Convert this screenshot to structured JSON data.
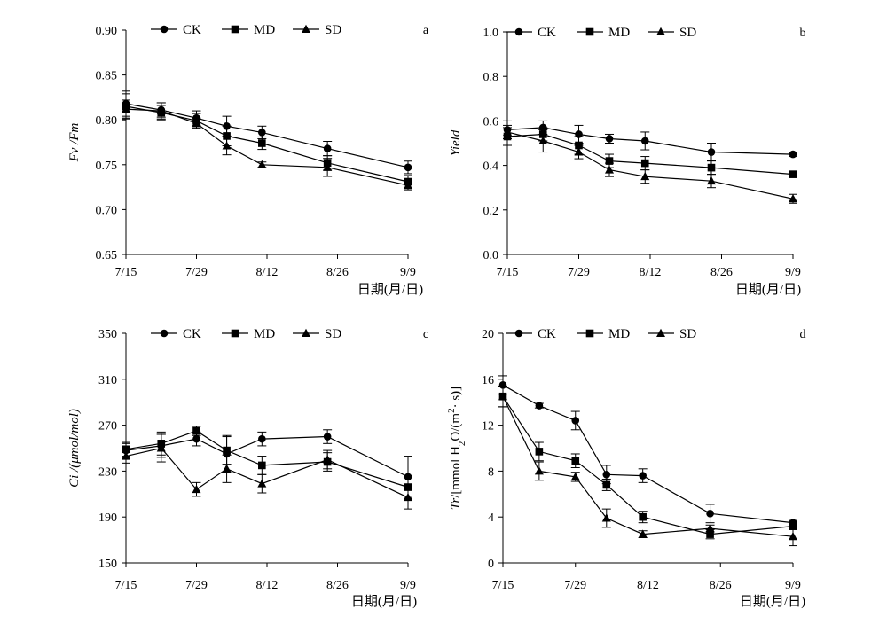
{
  "chart_data": [
    {
      "type": "line",
      "panel_label": "a",
      "ylabel": "Fv /Fm",
      "xlabel": "日期(月/日)",
      "ylim": [
        0.65,
        0.9
      ],
      "yticks": [
        "0.65",
        "0.70",
        "0.75",
        "0.80",
        "0.85",
        "0.90"
      ],
      "xticks": [
        "7/15",
        "7/29",
        "8/12",
        "8/26",
        "9/9"
      ],
      "x": [
        "7/15",
        "7/22",
        "7/29",
        "8/4",
        "8/11",
        "8/24",
        "9/9"
      ],
      "legend_position": "top-center",
      "series": [
        {
          "name": "CK",
          "marker": "circle",
          "values": [
            0.818,
            0.811,
            0.802,
            0.793,
            0.786,
            0.768,
            0.747
          ],
          "errors": [
            0.014,
            0.008,
            0.008,
            0.011,
            0.007,
            0.008,
            0.007
          ]
        },
        {
          "name": "MD",
          "marker": "square",
          "values": [
            0.815,
            0.808,
            0.799,
            0.782,
            0.774,
            0.752,
            0.731
          ],
          "errors": [
            0.014,
            0.008,
            0.008,
            0.011,
            0.007,
            0.008,
            0.007
          ]
        },
        {
          "name": "SD",
          "marker": "triangle",
          "values": [
            0.812,
            0.81,
            0.796,
            0.771,
            0.75,
            0.747,
            0.727
          ],
          "errors": [
            0.01,
            0.009,
            0.006,
            0.01,
            0.003,
            0.01,
            0.005
          ]
        }
      ]
    },
    {
      "type": "line",
      "panel_label": "b",
      "ylabel": "Yield",
      "xlabel": "日期(月/日)",
      "ylim": [
        0.0,
        1.0
      ],
      "yticks": [
        "0.0",
        "0.2",
        "0.4",
        "0.6",
        "0.8",
        "1.0"
      ],
      "xticks": [
        "7/15",
        "7/29",
        "8/12",
        "8/26",
        "9/9"
      ],
      "x": [
        "7/15",
        "7/22",
        "7/29",
        "8/4",
        "8/11",
        "8/24",
        "9/9"
      ],
      "legend_position": "top-center",
      "series": [
        {
          "name": "CK",
          "marker": "circle",
          "values": [
            0.56,
            0.57,
            0.54,
            0.52,
            0.51,
            0.46,
            0.45
          ],
          "errors": [
            0.04,
            0.03,
            0.04,
            0.02,
            0.04,
            0.04,
            0.01
          ]
        },
        {
          "name": "MD",
          "marker": "square",
          "values": [
            0.53,
            0.54,
            0.49,
            0.42,
            0.41,
            0.39,
            0.36
          ],
          "errors": [
            0.04,
            0.03,
            0.04,
            0.03,
            0.03,
            0.03,
            0.01
          ]
        },
        {
          "name": "SD",
          "marker": "triangle",
          "values": [
            0.55,
            0.51,
            0.46,
            0.38,
            0.35,
            0.33,
            0.25
          ],
          "errors": [
            0.03,
            0.05,
            0.03,
            0.03,
            0.03,
            0.03,
            0.02
          ]
        }
      ]
    },
    {
      "type": "line",
      "panel_label": "c",
      "ylabel": "Ci /(μmol/mol)",
      "xlabel": "日期(月/日)",
      "ylim": [
        150,
        350
      ],
      "yticks": [
        "150",
        "190",
        "230",
        "270",
        "310",
        "350"
      ],
      "xticks": [
        "7/15",
        "7/29",
        "8/12",
        "8/26",
        "9/9"
      ],
      "x": [
        "7/15",
        "7/22",
        "7/29",
        "8/4",
        "8/11",
        "8/24",
        "9/9"
      ],
      "legend_position": "top-center",
      "series": [
        {
          "name": "CK",
          "marker": "circle",
          "values": [
            248,
            252,
            258,
            245,
            258,
            260,
            225
          ],
          "errors": [
            6,
            10,
            6,
            16,
            6,
            6,
            18
          ]
        },
        {
          "name": "MD",
          "marker": "square",
          "values": [
            249,
            254,
            265,
            248,
            235,
            238,
            216
          ],
          "errors": [
            6,
            10,
            4,
            12,
            8,
            8,
            10
          ]
        },
        {
          "name": "SD",
          "marker": "triangle",
          "values": [
            243,
            250,
            214,
            232,
            219,
            240,
            207
          ],
          "errors": [
            6,
            12,
            6,
            12,
            8,
            8,
            10
          ]
        }
      ]
    },
    {
      "type": "line",
      "panel_label": "d",
      "ylabel_parts": [
        "Tr",
        "/[mmol H",
        "2",
        "O/(m",
        "2",
        "· s)]"
      ],
      "xlabel": "日期(月/日)",
      "ylim": [
        0,
        20
      ],
      "yticks": [
        "0",
        "4",
        "8",
        "12",
        "16",
        "20"
      ],
      "xticks": [
        "7/15",
        "7/29",
        "8/12",
        "8/26",
        "9/9"
      ],
      "x": [
        "7/15",
        "7/22",
        "7/29",
        "8/4",
        "8/11",
        "8/24",
        "9/9"
      ],
      "legend_position": "top-center",
      "series": [
        {
          "name": "CK",
          "marker": "circle",
          "values": [
            15.5,
            13.7,
            12.4,
            7.7,
            7.6,
            4.3,
            3.5
          ],
          "errors": [
            0.8,
            0.2,
            0.8,
            0.8,
            0.6,
            0.8,
            0.2
          ]
        },
        {
          "name": "MD",
          "marker": "square",
          "values": [
            14.5,
            9.7,
            8.9,
            6.8,
            4.0,
            2.5,
            3.2
          ],
          "errors": [
            0.9,
            0.8,
            0.6,
            0.5,
            0.5,
            0.4,
            0.3
          ]
        },
        {
          "name": "SD",
          "marker": "triangle",
          "values": [
            14.5,
            8.0,
            7.5,
            3.9,
            2.5,
            3.0,
            2.3
          ],
          "errors": [
            0.9,
            0.8,
            0.4,
            0.8,
            0.3,
            0.3,
            0.8
          ]
        }
      ]
    }
  ]
}
